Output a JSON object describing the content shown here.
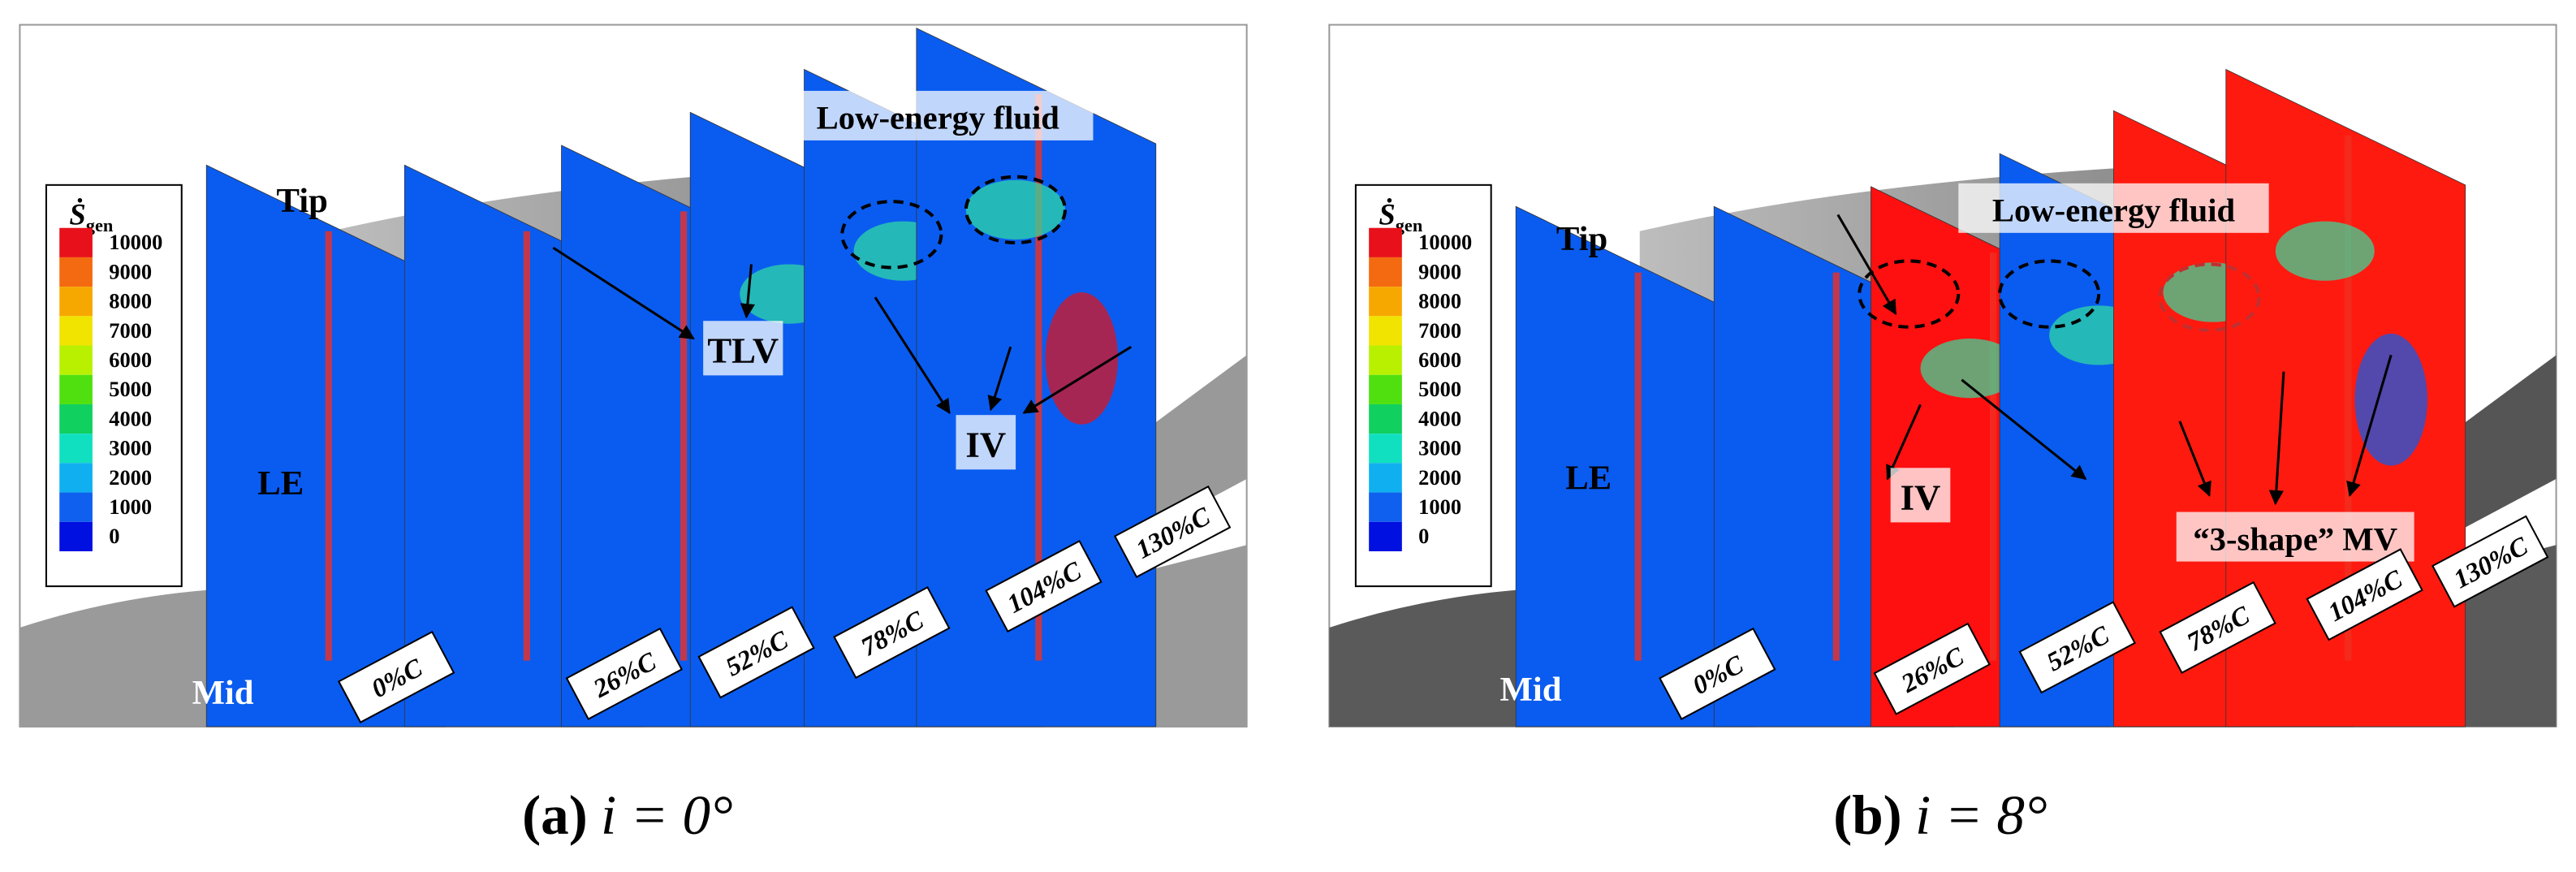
{
  "panels": [
    {
      "caption": {
        "label": "(a)",
        "text": "i = 0°"
      },
      "legend": {
        "symbol": "Ṡ",
        "subscript": "gen",
        "ticks": [
          10000,
          9000,
          8000,
          7000,
          6000,
          5000,
          4000,
          3000,
          2000,
          1000,
          0
        ]
      },
      "labels": [
        "Tip",
        "LE",
        "Mid",
        "TLV",
        "IV",
        "Low-energy fluid"
      ],
      "stations": [
        "0%C",
        "26%C",
        "52%C",
        "78%C",
        "104%C",
        "130%C"
      ]
    },
    {
      "caption": {
        "label": "(b)",
        "text": "i = 8°"
      },
      "legend": {
        "symbol": "Ṡ",
        "subscript": "gen",
        "ticks": [
          10000,
          9000,
          8000,
          7000,
          6000,
          5000,
          4000,
          3000,
          2000,
          1000,
          0
        ]
      },
      "labels": [
        "Tip",
        "LE",
        "Mid",
        "IV",
        "Low-energy fluid",
        "“3-shape” MV"
      ],
      "stations": [
        "0%C",
        "26%C",
        "52%C",
        "78%C",
        "104%C",
        "130%C"
      ]
    }
  ]
}
